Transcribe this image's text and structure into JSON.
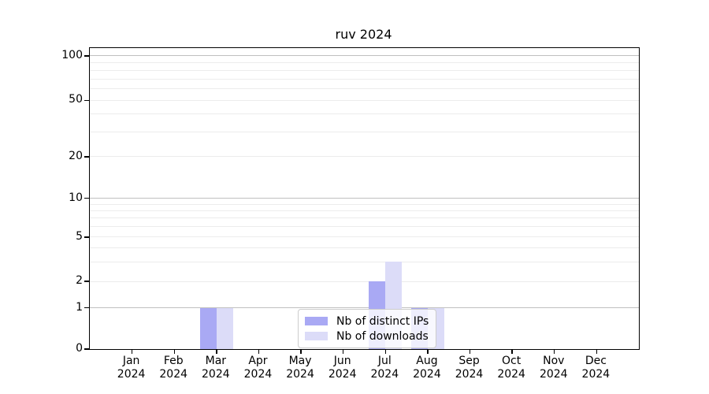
{
  "chart_data": {
    "type": "bar",
    "title": "ruv 2024",
    "categories": [
      "Jan",
      "Feb",
      "Mar",
      "Apr",
      "May",
      "Jun",
      "Jul",
      "Aug",
      "Sep",
      "Oct",
      "Nov",
      "Dec"
    ],
    "x_axis": {
      "year_label": "2024"
    },
    "series": [
      {
        "name": "Nb of distinct IPs",
        "color": "#a9a9f4",
        "values": [
          0,
          0,
          1,
          0,
          0,
          0,
          2,
          1,
          0,
          0,
          0,
          0
        ]
      },
      {
        "name": "Nb of downloads",
        "color": "#dcdcf8",
        "values": [
          0,
          0,
          1,
          0,
          0,
          0,
          3,
          1,
          0,
          0,
          0,
          0
        ]
      }
    ],
    "y_axis": {
      "scale": "asinh-log",
      "ticks": [
        {
          "label": "0",
          "v": 0,
          "f": 0.0
        },
        {
          "label": "1",
          "v": 1,
          "f": 0.137
        },
        {
          "label": "2",
          "v": 2,
          "f": 0.225
        },
        {
          "label": "5",
          "v": 5,
          "f": 0.372
        },
        {
          "label": "10",
          "v": 10,
          "f": 0.501
        },
        {
          "label": "20",
          "v": 20,
          "f": 0.639
        },
        {
          "label": "50",
          "v": 50,
          "f": 0.826
        },
        {
          "label": "100",
          "v": 100,
          "f": 0.974
        }
      ],
      "minor_values": [
        3,
        4,
        6,
        7,
        8,
        9,
        30,
        40,
        60,
        70,
        80,
        90
      ],
      "decade_values": [
        1,
        10,
        100
      ]
    },
    "legend": {
      "position": "lower-center"
    },
    "colors": {
      "grid_major": "#c0c0c0",
      "grid_minor": "#ececec",
      "spine": "#000000",
      "background": "#ffffff"
    },
    "grid": "on"
  }
}
